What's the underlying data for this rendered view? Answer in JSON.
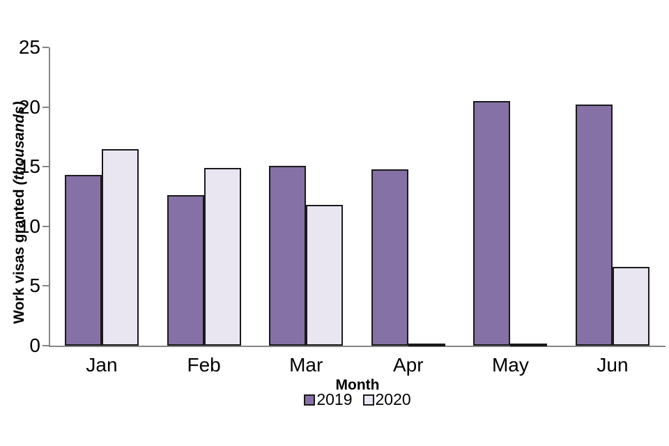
{
  "chart_data": {
    "type": "bar",
    "title": "",
    "categories": [
      "Jan",
      "Feb",
      "Mar",
      "Apr",
      "May",
      "Jun"
    ],
    "series": [
      {
        "name": "2019",
        "color": "#8571A5",
        "values": [
          14.3,
          12.6,
          15.1,
          14.8,
          20.5,
          20.2
        ]
      },
      {
        "name": "2020",
        "color": "#E9E6F2",
        "values": [
          16.5,
          14.9,
          11.8,
          0.1,
          0.1,
          6.6
        ]
      }
    ],
    "xlabel": "Month",
    "ylabel": "Work visas granted",
    "ylabel_unit": "(thousands)",
    "ylim": [
      0,
      25
    ],
    "yticks": [
      0,
      5,
      10,
      15,
      20,
      25
    ],
    "grid": false,
    "legend_position": "bottom-center",
    "colors": {
      "bar_border": "#1a1a1a",
      "axis": "#858585",
      "text": "#000000",
      "background": "#ffffff"
    }
  }
}
